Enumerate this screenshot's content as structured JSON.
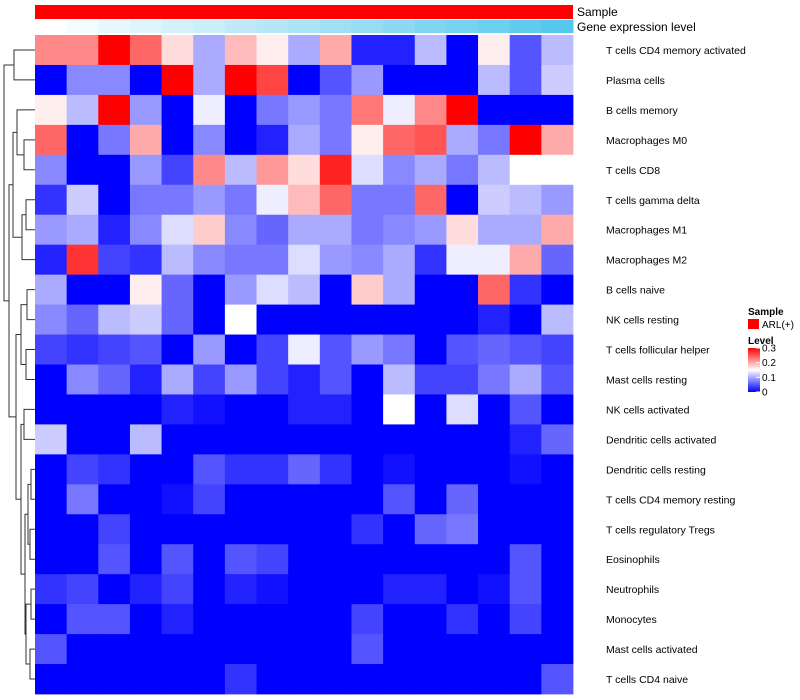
{
  "chart_data": {
    "type": "heatmap",
    "annotation_tracks": [
      {
        "name": "Sample",
        "color": "#ff0000"
      },
      {
        "name": "Gene expression level",
        "gradient": [
          "#ffffff",
          "#56c8ee"
        ]
      }
    ],
    "rows": [
      "T cells CD4 memory activated",
      "Plasma cells",
      "B cells memory",
      "Macrophages M0",
      "T cells CD8",
      "T cells gamma delta",
      "Macrophages M1",
      "Macrophages M2",
      "B cells naive",
      "NK cells resting",
      "T cells follicular helper",
      "Mast cells resting",
      "NK cells activated",
      "Dendritic cells activated",
      "Dendritic cells resting",
      "T cells CD4 memory resting",
      "T cells regulatory  Tregs",
      "Eosinophils",
      "Neutrophils",
      "Monocytes",
      "Mast cells activated",
      "T cells CD4 naive"
    ],
    "values": [
      [
        0.22,
        0.22,
        0.3,
        0.24,
        0.17,
        0.1,
        0.19,
        0.16,
        0.1,
        0.2,
        0.02,
        0.02,
        0.11,
        0.0,
        0.16,
        0.05,
        0.11
      ],
      [
        0.0,
        0.08,
        0.08,
        0.0,
        0.3,
        0.1,
        0.3,
        0.26,
        0.0,
        0.05,
        0.09,
        0.0,
        0.0,
        0.0,
        0.11,
        0.05,
        0.12
      ],
      [
        0.16,
        0.11,
        0.3,
        0.09,
        0.0,
        0.14,
        0.0,
        0.07,
        0.09,
        0.07,
        0.23,
        0.14,
        0.22,
        0.3,
        0.0,
        0.0,
        0.0
      ],
      [
        0.24,
        0.0,
        0.07,
        0.2,
        0.0,
        0.08,
        0.0,
        0.02,
        0.1,
        0.07,
        0.16,
        0.24,
        0.25,
        0.1,
        0.07,
        0.3,
        0.2
      ],
      [
        0.08,
        0.0,
        0.0,
        0.09,
        0.04,
        0.22,
        0.11,
        0.21,
        0.17,
        0.28,
        0.13,
        0.08,
        0.1,
        0.07,
        0.11,
        0.15,
        0.15
      ],
      [
        0.03,
        0.12,
        0.0,
        0.07,
        0.07,
        0.09,
        0.07,
        0.14,
        0.19,
        0.24,
        0.07,
        0.07,
        0.24,
        0.0,
        0.12,
        0.11,
        0.09
      ],
      [
        0.09,
        0.1,
        0.02,
        0.08,
        0.13,
        0.18,
        0.08,
        0.06,
        0.1,
        0.1,
        0.07,
        0.08,
        0.09,
        0.17,
        0.1,
        0.1,
        0.2
      ],
      [
        0.02,
        0.27,
        0.04,
        0.03,
        0.11,
        0.08,
        0.07,
        0.07,
        0.13,
        0.09,
        0.08,
        0.1,
        0.03,
        0.14,
        0.14,
        0.2,
        0.06
      ],
      [
        0.1,
        0.0,
        0.0,
        0.16,
        0.06,
        0.0,
        0.09,
        0.13,
        0.11,
        0.0,
        0.18,
        0.1,
        0.0,
        0.0,
        0.24,
        0.03,
        0.0
      ],
      [
        0.08,
        0.06,
        0.11,
        0.12,
        0.06,
        0.0,
        0.15,
        0.0,
        0.0,
        0.0,
        0.0,
        0.0,
        0.0,
        0.0,
        0.02,
        0.0,
        0.11
      ],
      [
        0.04,
        0.03,
        0.04,
        0.05,
        0.0,
        0.09,
        0.0,
        0.04,
        0.14,
        0.05,
        0.09,
        0.07,
        0.0,
        0.05,
        0.06,
        0.05,
        0.04
      ],
      [
        0.0,
        0.08,
        0.06,
        0.02,
        0.1,
        0.04,
        0.09,
        0.04,
        0.02,
        0.05,
        0.0,
        0.11,
        0.04,
        0.04,
        0.07,
        0.1,
        0.05
      ],
      [
        0.0,
        0.0,
        0.0,
        0.0,
        0.02,
        0.01,
        0.0,
        0.0,
        0.02,
        0.02,
        0.0,
        0.15,
        0.0,
        0.13,
        0.0,
        0.05,
        0.0
      ],
      [
        0.12,
        0.0,
        0.0,
        0.11,
        0.0,
        0.0,
        0.0,
        0.0,
        0.0,
        0.0,
        0.0,
        0.0,
        0.0,
        0.0,
        0.0,
        0.02,
        0.06
      ],
      [
        0.0,
        0.04,
        0.03,
        0.0,
        0.0,
        0.05,
        0.03,
        0.03,
        0.06,
        0.03,
        0.0,
        0.01,
        0.0,
        0.0,
        0.0,
        0.01,
        0.0
      ],
      [
        0.0,
        0.07,
        0.0,
        0.0,
        0.01,
        0.04,
        0.0,
        0.0,
        0.0,
        0.0,
        0.0,
        0.05,
        0.0,
        0.06,
        0.0,
        0.0,
        0.0
      ],
      [
        0.0,
        0.0,
        0.04,
        0.0,
        0.0,
        0.0,
        0.0,
        0.0,
        0.0,
        0.0,
        0.03,
        0.0,
        0.06,
        0.07,
        0.0,
        0.0,
        0.0
      ],
      [
        0.0,
        0.0,
        0.05,
        0.0,
        0.05,
        0.0,
        0.05,
        0.04,
        0.0,
        0.0,
        0.0,
        0.0,
        0.0,
        0.0,
        0.0,
        0.05,
        0.0
      ],
      [
        0.03,
        0.04,
        0.0,
        0.02,
        0.04,
        0.0,
        0.02,
        0.01,
        0.0,
        0.0,
        0.0,
        0.02,
        0.02,
        0.0,
        0.01,
        0.05,
        0.0
      ],
      [
        0.0,
        0.05,
        0.05,
        0.0,
        0.02,
        0.0,
        0.0,
        0.0,
        0.0,
        0.0,
        0.04,
        0.0,
        0.0,
        0.03,
        0.0,
        0.04,
        0.0
      ],
      [
        0.05,
        0.0,
        0.0,
        0.0,
        0.0,
        0.0,
        0.0,
        0.0,
        0.0,
        0.0,
        0.05,
        0.0,
        0.0,
        0.0,
        0.0,
        0.0,
        0.0
      ],
      [
        0.0,
        0.0,
        0.0,
        0.0,
        0.0,
        0.0,
        0.03,
        0.0,
        0.0,
        0.0,
        0.0,
        0.0,
        0.0,
        0.0,
        0.0,
        0.0,
        0.05
      ]
    ],
    "color_scale": {
      "min": 0,
      "max": 0.3,
      "colors": [
        "#0000ff",
        "#ffffff",
        "#ff0000"
      ]
    },
    "legend": {
      "sample_title": "Sample",
      "sample_entry": "ARL(+)",
      "level_title": "Level",
      "ticks": [
        0.3,
        0.2,
        0.1,
        0
      ],
      "placement": "right"
    },
    "row_dendrogram": true
  }
}
